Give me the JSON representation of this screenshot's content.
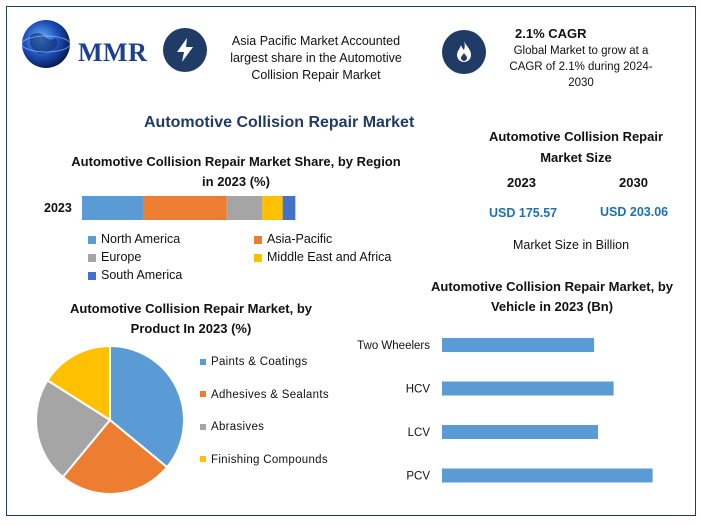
{
  "brand": {
    "name": "MMR"
  },
  "info_boxes": [
    {
      "icon": "lightning-bolt-icon",
      "title": "",
      "text": "Asia Pacific Market Accounted largest share in the Automotive Collision Repair Market"
    },
    {
      "icon": "flame-icon",
      "title": "2.1% CAGR",
      "text": "Global Market to grow at a CAGR of 2.1% during 2024-2030"
    }
  ],
  "main_title": "Automotive Collision Repair Market",
  "market_size": {
    "title": "Automotive Collision Repair Market Size",
    "years": [
      "2023",
      "2030"
    ],
    "values": [
      "USD 175.57",
      "USD 203.06"
    ],
    "note": "Market Size in Billion"
  },
  "colors": {
    "accent_blue": "#1f6fb2",
    "navy": "#1f3b66"
  },
  "chart_data": [
    {
      "type": "bar",
      "orientation": "horizontal-stacked",
      "title": "Automotive Collision Repair Market Share, by Region in 2023 (%)",
      "categories": [
        "2023"
      ],
      "series": [
        {
          "name": "North America",
          "values": [
            24
          ],
          "color": "#5b9bd5"
        },
        {
          "name": "Asia-Pacific",
          "values": [
            33
          ],
          "color": "#ed7d31"
        },
        {
          "name": "Europe",
          "values": [
            14
          ],
          "color": "#a5a5a5"
        },
        {
          "name": "Middle East and Africa",
          "values": [
            8
          ],
          "color": "#ffc000"
        },
        {
          "name": "South America",
          "values": [
            5
          ],
          "color": "#4472c4"
        }
      ],
      "xlim": [
        0,
        100
      ],
      "legend": "bottom"
    },
    {
      "type": "pie",
      "title": "Automotive Collision Repair Market, by Product In 2023 (%)",
      "labels": [
        "Paints & Coatings",
        "Adhesives & Sealants",
        "Abrasives",
        "Finishing Compounds"
      ],
      "values": [
        36,
        25,
        23,
        16
      ],
      "colors": [
        "#5b9bd5",
        "#ed7d31",
        "#a5a5a5",
        "#ffc000"
      ],
      "legend": "right"
    },
    {
      "type": "bar",
      "orientation": "horizontal",
      "title": "Automotive Collision Repair Market, by Vehicle in 2023 (Bn)",
      "categories": [
        "Two Wheelers",
        "HCV",
        "LCV",
        "PCV"
      ],
      "values": [
        39,
        44,
        40,
        54
      ],
      "xlim": [
        0,
        60
      ],
      "color": "#5b9bd5",
      "grid": false
    }
  ]
}
